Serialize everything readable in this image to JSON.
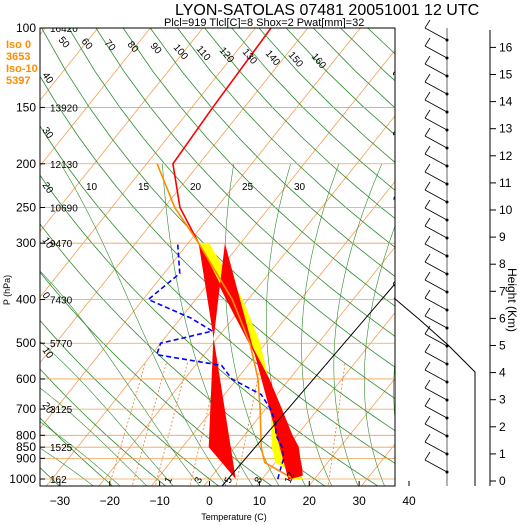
{
  "chart_data": {
    "type": "line",
    "title": "LYON-SATOLAS 07481 20051001 12 UTC",
    "subtitle": "Plcl=919 Tlcl[C]=8 Shox=2 Pwat[mm]=32",
    "xlabel": "Temperature (C)",
    "ylabel": "P (hPa)",
    "y2label": "Height (Km)",
    "xlim": [
      -35,
      50
    ],
    "ylim": [
      1050,
      100
    ],
    "pressure_ticks": [
      100,
      150,
      200,
      250,
      300,
      400,
      500,
      600,
      700,
      800,
      850,
      900,
      1000
    ],
    "pressure_tick_labels": [
      "100",
      "150",
      "200",
      "250",
      "300",
      "400",
      "500",
      "600",
      "700",
      "800",
      "850",
      "900",
      "1000"
    ],
    "temperature_ticks": [
      "−30",
      "−20",
      "−10",
      "0",
      "10",
      "20",
      "30",
      "40"
    ],
    "temperature_tick_values": [
      -30,
      -20,
      -10,
      0,
      10,
      20,
      30,
      40
    ],
    "height_ticks": [
      "0",
      "1",
      "2",
      "3",
      "4",
      "5",
      "6",
      "7",
      "8",
      "9",
      "10",
      "11",
      "12",
      "13",
      "14",
      "15",
      "16"
    ],
    "geopotential_labels": [
      {
        "p": 100,
        "text": "16420"
      },
      {
        "p": 150,
        "text": "13920"
      },
      {
        "p": 200,
        "text": "12130"
      },
      {
        "p": 250,
        "text": "10690"
      },
      {
        "p": 300,
        "text": "9470"
      },
      {
        "p": 400,
        "text": "7430"
      },
      {
        "p": 500,
        "text": "5770"
      },
      {
        "p": 700,
        "text": "3125"
      },
      {
        "p": 850,
        "text": "1525"
      },
      {
        "p": 1000,
        "text": "162"
      }
    ],
    "iso_info": [
      "Iso 0",
      "3653",
      "Iso-10",
      "5397"
    ],
    "mixing_ratio_labels": [
      "10",
      "15",
      "20",
      "25",
      "30"
    ],
    "dry_adiabat_labels": [
      "30",
      "20",
      "10",
      "0",
      "10",
      "20",
      "30"
    ],
    "temperature_label_top": [
      "50",
      "60",
      "70",
      "80",
      "90",
      "100",
      "110",
      "120",
      "130",
      "140",
      "150",
      "160"
    ],
    "side_labels": [
      "40",
      "30",
      "20",
      "10",
      "0",
      "10",
      "20"
    ],
    "bottom_isotherm_labels": [
      "1",
      "3",
      "5",
      "8",
      "12"
    ],
    "series": [
      {
        "name": "Temperature",
        "color": "#ff0000",
        "points": [
          {
            "p": 1000,
            "t": 15
          },
          {
            "p": 980,
            "t": 17
          },
          {
            "p": 950,
            "t": 16
          },
          {
            "p": 900,
            "t": 14
          },
          {
            "p": 850,
            "t": 12
          },
          {
            "p": 800,
            "t": 9
          },
          {
            "p": 700,
            "t": 3
          },
          {
            "p": 600,
            "t": -4
          },
          {
            "p": 500,
            "t": -13
          },
          {
            "p": 400,
            "t": -24
          },
          {
            "p": 300,
            "t": -38
          },
          {
            "p": 250,
            "t": -47
          },
          {
            "p": 200,
            "t": -55
          },
          {
            "p": 150,
            "t": -56
          },
          {
            "p": 100,
            "t": -57
          }
        ]
      },
      {
        "name": "Dewpoint",
        "color": "#0000ff",
        "points": [
          {
            "p": 1000,
            "t": 13
          },
          {
            "p": 950,
            "t": 12
          },
          {
            "p": 900,
            "t": 11
          },
          {
            "p": 850,
            "t": 9
          },
          {
            "p": 800,
            "t": 6
          },
          {
            "p": 750,
            "t": 4
          },
          {
            "p": 700,
            "t": 1
          },
          {
            "p": 650,
            "t": -3
          },
          {
            "p": 600,
            "t": -11
          },
          {
            "p": 560,
            "t": -15
          },
          {
            "p": 530,
            "t": -29
          },
          {
            "p": 500,
            "t": -30
          },
          {
            "p": 470,
            "t": -22
          },
          {
            "p": 440,
            "t": -28
          },
          {
            "p": 400,
            "t": -39
          },
          {
            "p": 350,
            "t": -37
          },
          {
            "p": 300,
            "t": -42
          }
        ]
      },
      {
        "name": "Parcel",
        "color": "#ff8c00",
        "points": [
          {
            "p": 1000,
            "t": 16
          },
          {
            "p": 919,
            "t": 8
          },
          {
            "p": 850,
            "t": 5
          },
          {
            "p": 700,
            "t": -1
          },
          {
            "p": 600,
            "t": -6
          },
          {
            "p": 500,
            "t": -13
          },
          {
            "p": 400,
            "t": -23
          },
          {
            "p": 300,
            "t": -38
          },
          {
            "p": 250,
            "t": -48
          },
          {
            "p": 200,
            "t": -58
          }
        ]
      }
    ],
    "wind_barbs_count": 25
  }
}
